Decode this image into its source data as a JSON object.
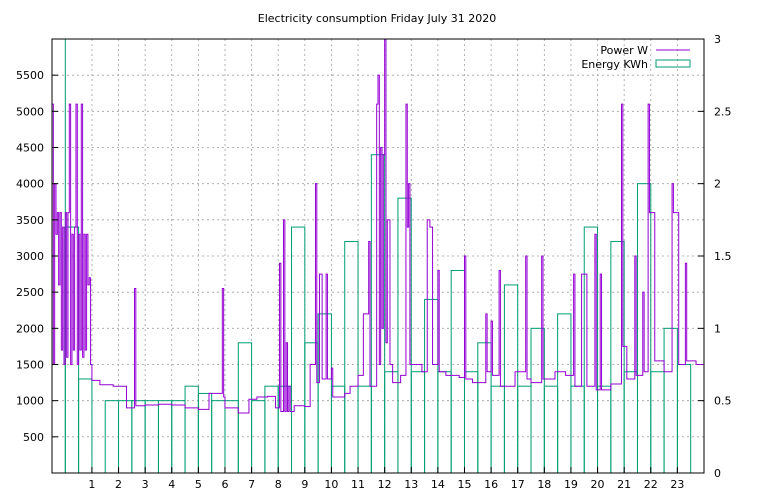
{
  "chart_data": {
    "type": "bar",
    "title": "Electricity consumption Friday July 31 2020",
    "xlim": [
      -0.5,
      24
    ],
    "x_ticks": [
      1,
      2,
      3,
      4,
      5,
      6,
      7,
      8,
      9,
      10,
      11,
      12,
      13,
      14,
      15,
      16,
      17,
      18,
      19,
      20,
      21,
      22,
      23
    ],
    "y_left": {
      "ylim": [
        0,
        6000
      ],
      "ticks": [
        500,
        1000,
        1500,
        2000,
        2500,
        3000,
        3500,
        4000,
        4500,
        5000,
        5500
      ]
    },
    "y_right": {
      "ylim": [
        0,
        3
      ],
      "ticks": [
        "0",
        "0.5",
        "1",
        "1.5",
        "2",
        "2.5",
        "3"
      ]
    },
    "grid": true,
    "legend_position": "top-right",
    "colors": {
      "power": "#9400d3",
      "energy": "#009e73",
      "grid": "#a0a0a0"
    },
    "series": [
      {
        "name": "Power W",
        "type": "step-line",
        "axis": "left",
        "points": [
          [
            -0.5,
            5100
          ],
          [
            -0.45,
            1500
          ],
          [
            -0.4,
            4000
          ],
          [
            -0.35,
            3300
          ],
          [
            -0.3,
            3600
          ],
          [
            -0.25,
            2600
          ],
          [
            -0.2,
            3600
          ],
          [
            -0.15,
            1700
          ],
          [
            -0.1,
            3400
          ],
          [
            -0.05,
            1500
          ],
          [
            0,
            3600
          ],
          [
            0.05,
            1600
          ],
          [
            0.1,
            3600
          ],
          [
            0.15,
            5100
          ],
          [
            0.2,
            1500
          ],
          [
            0.25,
            3300
          ],
          [
            0.3,
            1700
          ],
          [
            0.35,
            3400
          ],
          [
            0.4,
            5100
          ],
          [
            0.45,
            1500
          ],
          [
            0.5,
            3300
          ],
          [
            0.55,
            1700
          ],
          [
            0.6,
            5100
          ],
          [
            0.65,
            1600
          ],
          [
            0.7,
            3300
          ],
          [
            0.75,
            1700
          ],
          [
            0.8,
            3300
          ],
          [
            0.85,
            2600
          ],
          [
            0.9,
            2700
          ],
          [
            0.95,
            1500
          ],
          [
            1.0,
            1280
          ],
          [
            1.3,
            1220
          ],
          [
            1.8,
            1200
          ],
          [
            2.3,
            900
          ],
          [
            2.6,
            2550
          ],
          [
            2.65,
            930
          ],
          [
            3.0,
            940
          ],
          [
            3.5,
            950
          ],
          [
            4.0,
            940
          ],
          [
            4.5,
            900
          ],
          [
            5.0,
            880
          ],
          [
            5.4,
            1100
          ],
          [
            5.9,
            2550
          ],
          [
            5.95,
            1050
          ],
          [
            6.0,
            900
          ],
          [
            6.5,
            830
          ],
          [
            6.9,
            1020
          ],
          [
            7.2,
            1050
          ],
          [
            7.6,
            1060
          ],
          [
            7.9,
            900
          ],
          [
            8.05,
            2900
          ],
          [
            8.1,
            850
          ],
          [
            8.2,
            3500
          ],
          [
            8.25,
            850
          ],
          [
            8.3,
            1800
          ],
          [
            8.35,
            850
          ],
          [
            8.4,
            1200
          ],
          [
            8.45,
            850
          ],
          [
            8.6,
            930
          ],
          [
            9.0,
            920
          ],
          [
            9.2,
            1500
          ],
          [
            9.4,
            4000
          ],
          [
            9.45,
            1250
          ],
          [
            9.55,
            2750
          ],
          [
            9.65,
            1300
          ],
          [
            9.8,
            2750
          ],
          [
            9.85,
            1300
          ],
          [
            10.0,
            1450
          ],
          [
            10.05,
            1050
          ],
          [
            10.5,
            1100
          ],
          [
            10.7,
            1200
          ],
          [
            11.0,
            1350
          ],
          [
            11.2,
            2200
          ],
          [
            11.4,
            3200
          ],
          [
            11.45,
            1200
          ],
          [
            11.7,
            5100
          ],
          [
            11.75,
            5500
          ],
          [
            11.8,
            1500
          ],
          [
            11.85,
            4500
          ],
          [
            11.9,
            2000
          ],
          [
            11.95,
            4400
          ],
          [
            12.0,
            6000
          ],
          [
            12.05,
            1800
          ],
          [
            12.1,
            3500
          ],
          [
            12.2,
            1500
          ],
          [
            12.3,
            1250
          ],
          [
            12.6,
            1350
          ],
          [
            12.8,
            5100
          ],
          [
            12.85,
            3400
          ],
          [
            12.9,
            4000
          ],
          [
            12.95,
            1500
          ],
          [
            13.1,
            1500
          ],
          [
            13.4,
            1400
          ],
          [
            13.6,
            3500
          ],
          [
            13.7,
            3400
          ],
          [
            13.8,
            1500
          ],
          [
            14.0,
            2800
          ],
          [
            14.05,
            1400
          ],
          [
            14.3,
            1350
          ],
          [
            14.8,
            1320
          ],
          [
            15.0,
            3000
          ],
          [
            15.05,
            1300
          ],
          [
            15.3,
            1250
          ],
          [
            15.8,
            2200
          ],
          [
            15.85,
            1400
          ],
          [
            16.0,
            2100
          ],
          [
            16.05,
            1350
          ],
          [
            16.3,
            2800
          ],
          [
            16.35,
            1200
          ],
          [
            16.6,
            1200
          ],
          [
            16.9,
            1400
          ],
          [
            17.3,
            3000
          ],
          [
            17.35,
            1300
          ],
          [
            17.5,
            1250
          ],
          [
            17.9,
            3000
          ],
          [
            17.95,
            1300
          ],
          [
            18.4,
            1400
          ],
          [
            18.8,
            1350
          ],
          [
            19.1,
            2750
          ],
          [
            19.15,
            1200
          ],
          [
            19.4,
            2750
          ],
          [
            19.6,
            1200
          ],
          [
            19.9,
            3300
          ],
          [
            19.95,
            1150
          ],
          [
            20.1,
            2750
          ],
          [
            20.15,
            1150
          ],
          [
            20.5,
            1230
          ],
          [
            20.9,
            5100
          ],
          [
            20.95,
            1750
          ],
          [
            21.1,
            1300
          ],
          [
            21.4,
            3000
          ],
          [
            21.45,
            1350
          ],
          [
            21.7,
            2500
          ],
          [
            21.75,
            1400
          ],
          [
            21.9,
            5100
          ],
          [
            21.95,
            3600
          ],
          [
            22.1,
            3600
          ],
          [
            22.15,
            1550
          ],
          [
            22.5,
            1400
          ],
          [
            22.8,
            4000
          ],
          [
            22.85,
            3600
          ],
          [
            23.0,
            3600
          ],
          [
            23.05,
            1500
          ],
          [
            23.3,
            2900
          ],
          [
            23.35,
            1550
          ],
          [
            23.7,
            1500
          ],
          [
            24.0,
            1500
          ]
        ]
      },
      {
        "name": "Energy KWh",
        "type": "boxes",
        "axis": "right",
        "points": [
          [
            -0.25,
            3.0
          ],
          [
            0.25,
            1.7
          ],
          [
            0.75,
            0.65
          ],
          [
            1.75,
            0.5
          ],
          [
            2.25,
            0.5
          ],
          [
            2.75,
            0.5
          ],
          [
            3.25,
            0.5
          ],
          [
            3.75,
            0.5
          ],
          [
            4.25,
            0.5
          ],
          [
            4.75,
            0.6
          ],
          [
            5.25,
            0.55
          ],
          [
            5.75,
            0.5
          ],
          [
            6.25,
            0.5
          ],
          [
            6.75,
            0.9
          ],
          [
            7.25,
            0.5
          ],
          [
            7.75,
            0.6
          ],
          [
            8.25,
            0.6
          ],
          [
            8.75,
            1.7
          ],
          [
            9.25,
            0.9
          ],
          [
            9.75,
            1.1
          ],
          [
            10.25,
            0.6
          ],
          [
            10.75,
            1.6
          ],
          [
            11.25,
            0.6
          ],
          [
            11.75,
            2.2
          ],
          [
            12.25,
            0.7
          ],
          [
            12.75,
            1.9
          ],
          [
            13.25,
            0.7
          ],
          [
            13.75,
            1.2
          ],
          [
            14.25,
            0.7
          ],
          [
            14.75,
            1.4
          ],
          [
            15.25,
            0.7
          ],
          [
            15.75,
            0.9
          ],
          [
            16.25,
            0.6
          ],
          [
            16.75,
            1.3
          ],
          [
            17.25,
            0.6
          ],
          [
            17.75,
            1.0
          ],
          [
            18.25,
            0.6
          ],
          [
            18.75,
            1.1
          ],
          [
            19.25,
            0.6
          ],
          [
            19.75,
            1.7
          ],
          [
            20.25,
            0.6
          ],
          [
            20.75,
            1.6
          ],
          [
            21.25,
            0.7
          ],
          [
            21.75,
            2.0
          ],
          [
            22.25,
            0.7
          ],
          [
            22.75,
            1.0
          ],
          [
            23.25,
            0.75
          ]
        ]
      }
    ]
  }
}
